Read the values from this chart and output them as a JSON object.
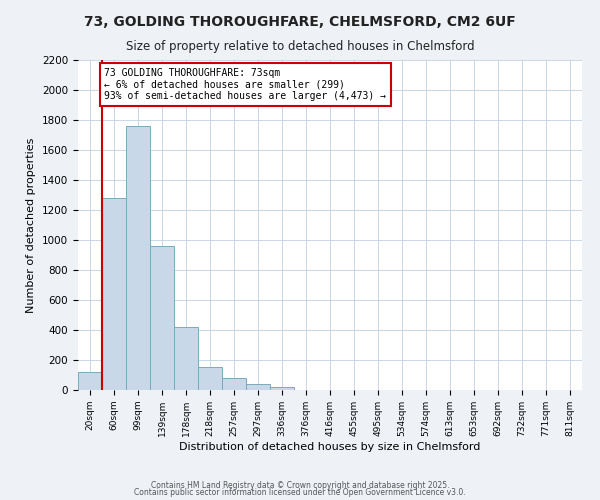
{
  "title": "73, GOLDING THOROUGHFARE, CHELMSFORD, CM2 6UF",
  "subtitle": "Size of property relative to detached houses in Chelmsford",
  "xlabel": "Distribution of detached houses by size in Chelmsford",
  "ylabel": "Number of detached properties",
  "bin_labels": [
    "20sqm",
    "60sqm",
    "99sqm",
    "139sqm",
    "178sqm",
    "218sqm",
    "257sqm",
    "297sqm",
    "336sqm",
    "376sqm",
    "416sqm",
    "455sqm",
    "495sqm",
    "534sqm",
    "574sqm",
    "613sqm",
    "653sqm",
    "692sqm",
    "732sqm",
    "771sqm",
    "811sqm"
  ],
  "bar_values": [
    120,
    1280,
    1760,
    960,
    420,
    155,
    80,
    42,
    22,
    0,
    0,
    0,
    0,
    0,
    0,
    0,
    0,
    0,
    0,
    0,
    0
  ],
  "bar_color": "#c8d8e8",
  "bar_edge_color": "#7aaabb",
  "vline_x": 1,
  "vline_color": "#cc0000",
  "annotation_text": "73 GOLDING THOROUGHFARE: 73sqm\n← 6% of detached houses are smaller (299)\n93% of semi-detached houses are larger (4,473) →",
  "annotation_box_color": "#cc0000",
  "ylim": [
    0,
    2200
  ],
  "yticks": [
    0,
    200,
    400,
    600,
    800,
    1000,
    1200,
    1400,
    1600,
    1800,
    2000,
    2200
  ],
  "footer1": "Contains HM Land Registry data © Crown copyright and database right 2025.",
  "footer2": "Contains public sector information licensed under the Open Government Licence v3.0.",
  "bg_color": "#eef2f7",
  "plot_bg_color": "#ffffff",
  "grid_color": "#b8c8dc"
}
